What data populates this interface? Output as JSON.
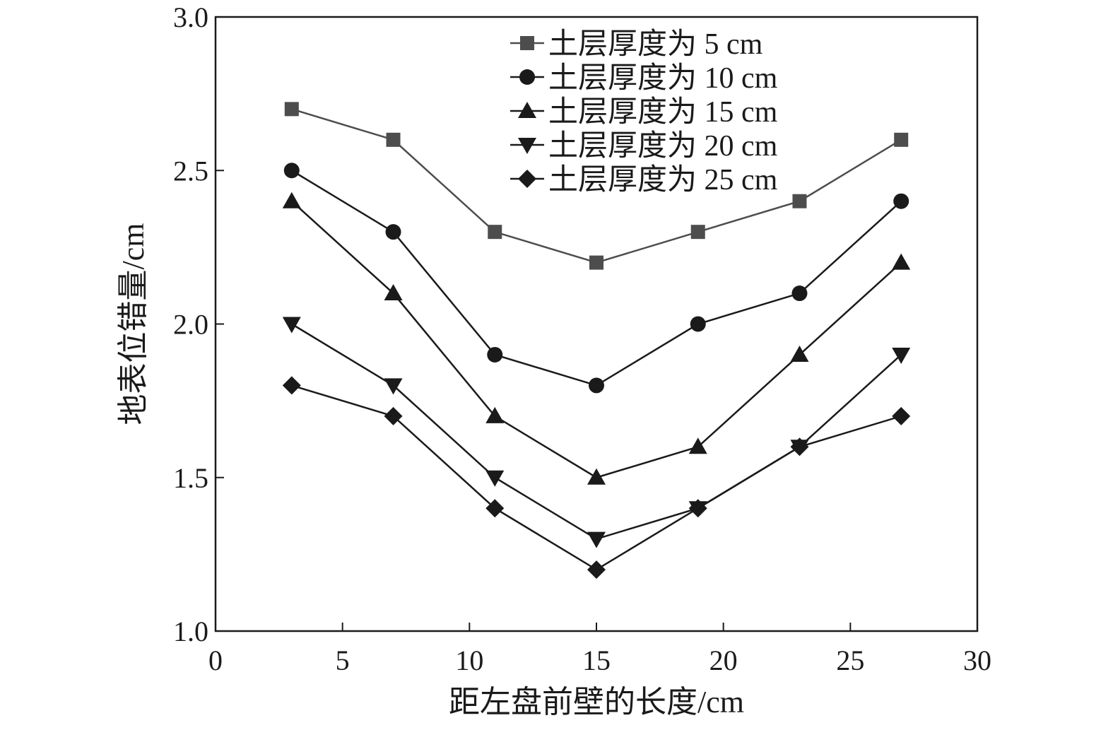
{
  "chart_data": {
    "type": "line",
    "title": "",
    "xlabel": "距左盘前壁的长度/cm",
    "ylabel": "地表位错量/cm",
    "xlim": [
      0,
      30
    ],
    "ylim": [
      1.0,
      3.0
    ],
    "xticks": [
      0,
      5,
      10,
      15,
      20,
      25,
      30
    ],
    "yticks": [
      1.0,
      1.5,
      2.0,
      2.5,
      3.0
    ],
    "xtick_labels": [
      "0",
      "5",
      "10",
      "15",
      "20",
      "25",
      "30"
    ],
    "ytick_labels": [
      "1.0",
      "1.5",
      "2.0",
      "2.5",
      "3.0"
    ],
    "grid": false,
    "legend_position": "top-right",
    "x": [
      3,
      7,
      11,
      15,
      19,
      23,
      27
    ],
    "series": [
      {
        "name": "土层厚度为 5 cm",
        "marker": "square",
        "color": "#4d4d4d",
        "values": [
          2.7,
          2.6,
          2.3,
          2.2,
          2.3,
          2.4,
          2.6
        ]
      },
      {
        "name": "土层厚度为 10 cm",
        "marker": "circle",
        "color": "#1a1a1a",
        "values": [
          2.5,
          2.3,
          1.9,
          1.8,
          2.0,
          2.1,
          2.4
        ]
      },
      {
        "name": "土层厚度为 15 cm",
        "marker": "triangle-up",
        "color": "#1a1a1a",
        "values": [
          2.4,
          2.1,
          1.7,
          1.5,
          1.6,
          1.9,
          2.2
        ]
      },
      {
        "name": "土层厚度为 20 cm",
        "marker": "triangle-down",
        "color": "#1a1a1a",
        "values": [
          2.0,
          1.8,
          1.5,
          1.3,
          1.4,
          1.6,
          1.9
        ]
      },
      {
        "name": "土层厚度为 25 cm",
        "marker": "diamond",
        "color": "#1a1a1a",
        "values": [
          1.8,
          1.7,
          1.4,
          1.2,
          1.4,
          1.6,
          1.7
        ]
      }
    ]
  }
}
